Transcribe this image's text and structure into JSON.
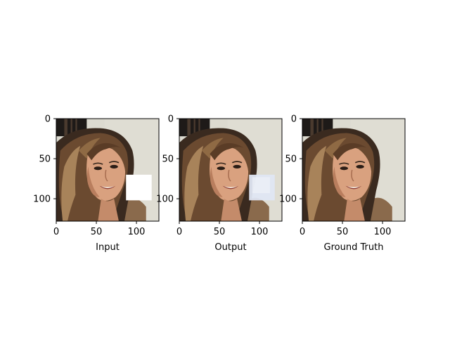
{
  "chart_data": [
    {
      "type": "image",
      "xlabel": "Input",
      "xlim": [
        0,
        128
      ],
      "ylim": [
        128,
        0
      ],
      "xticks": [
        0,
        50,
        100
      ],
      "yticks": [
        0,
        50,
        100
      ],
      "content": "portrait photo of a smiling woman with long brown hair, white square mask over region",
      "mask": {
        "x": [
          87,
          119
        ],
        "y": [
          70,
          102
        ],
        "color": "#ffffff"
      }
    },
    {
      "type": "image",
      "xlabel": "Output",
      "xlim": [
        0,
        128
      ],
      "ylim": [
        128,
        0
      ],
      "xticks": [
        0,
        50,
        100
      ],
      "yticks": [
        0,
        50,
        100
      ],
      "content": "portrait photo with masked region filled by pale bluish inpainting",
      "mask": {
        "x": [
          87,
          119
        ],
        "y": [
          70,
          102
        ],
        "color": "#dfe6f3"
      }
    },
    {
      "type": "image",
      "xlabel": "Ground Truth",
      "xlim": [
        0,
        128
      ],
      "ylim": [
        128,
        0
      ],
      "xticks": [
        0,
        50,
        100
      ],
      "yticks": [
        0,
        50,
        100
      ],
      "content": "original unmasked portrait photo",
      "mask": null
    }
  ],
  "colors": {
    "background_wall": "#dcdad0",
    "hair_dark": "#3a2a1f",
    "hair_mid": "#6b4a30",
    "hair_light": "#a8835a",
    "skin": "#d9a17f",
    "skin_shadow": "#b97e5e",
    "guitar": "#1e1a18",
    "guitar_wood": "#8a6a4c"
  }
}
